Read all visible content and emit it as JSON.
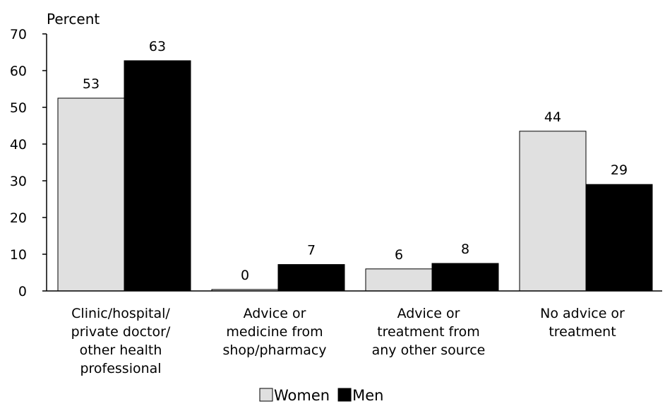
{
  "chart_data": {
    "type": "bar",
    "ylabel": "Percent",
    "ylim": [
      0,
      70
    ],
    "yticks": [
      "0",
      "10",
      "20",
      "30",
      "40",
      "50",
      "60",
      "70"
    ],
    "categories": [
      [
        "Clinic/hospital/",
        "private doctor/",
        "other health",
        "professional"
      ],
      [
        "Advice or",
        "medicine from",
        "shop/pharmacy"
      ],
      [
        "Advice or",
        "treatment from",
        "any other source"
      ],
      [
        "No advice or",
        "treatment"
      ]
    ],
    "series": [
      {
        "name": "Women",
        "values": [
          52.5,
          0.4,
          6,
          43.5
        ],
        "labels": [
          "53",
          "0",
          "6",
          "44"
        ],
        "color": "#e0e0e0"
      },
      {
        "name": "Men",
        "values": [
          62.7,
          7.2,
          7.5,
          29
        ],
        "labels": [
          "63",
          "7",
          "8",
          "29"
        ],
        "color": "#000000"
      }
    ],
    "legend": "bottom-center",
    "grid": false
  }
}
